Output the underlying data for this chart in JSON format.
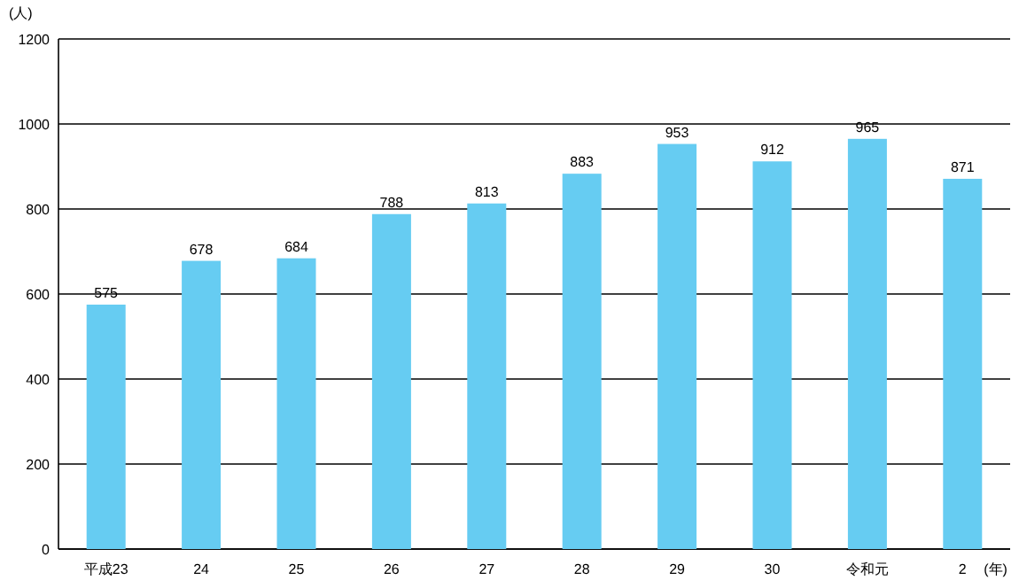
{
  "chart_data": {
    "type": "bar",
    "categories": [
      "平成23",
      "24",
      "25",
      "26",
      "27",
      "28",
      "29",
      "30",
      "令和元",
      "2"
    ],
    "values": [
      575,
      678,
      684,
      788,
      813,
      883,
      953,
      912,
      965,
      871
    ],
    "color": "#66ccf2",
    "ylabel": "(人)",
    "xlabel": "(年)",
    "ylim": [
      0,
      1200
    ],
    "yticks": [
      0,
      200,
      400,
      600,
      800,
      1000,
      1200
    ],
    "grid": "y",
    "data_labels": true
  }
}
